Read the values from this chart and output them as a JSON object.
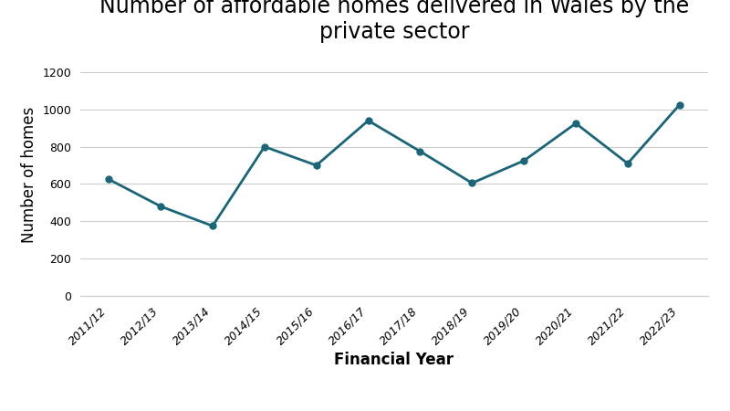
{
  "title": "Number of affordable homes delivered in Wales by the\nprivate sector",
  "xlabel": "Financial Year",
  "ylabel": "Number of homes",
  "categories": [
    "2011/12",
    "2012/13",
    "2013/14",
    "2014/15",
    "2015/16",
    "2016/17",
    "2017/18",
    "2018/19",
    "2019/20",
    "2020/21",
    "2021/22",
    "2022/23"
  ],
  "values": [
    625,
    480,
    375,
    800,
    700,
    940,
    775,
    605,
    725,
    925,
    710,
    1025
  ],
  "line_color": "#1a6678",
  "marker": "o",
  "marker_size": 5,
  "linewidth": 2,
  "ylim": [
    0,
    1300
  ],
  "yticks": [
    0,
    200,
    400,
    600,
    800,
    1000,
    1200
  ],
  "background_color": "#ffffff",
  "grid_color": "#cccccc",
  "title_fontsize": 17,
  "axis_label_fontsize": 12,
  "tick_fontsize": 9
}
